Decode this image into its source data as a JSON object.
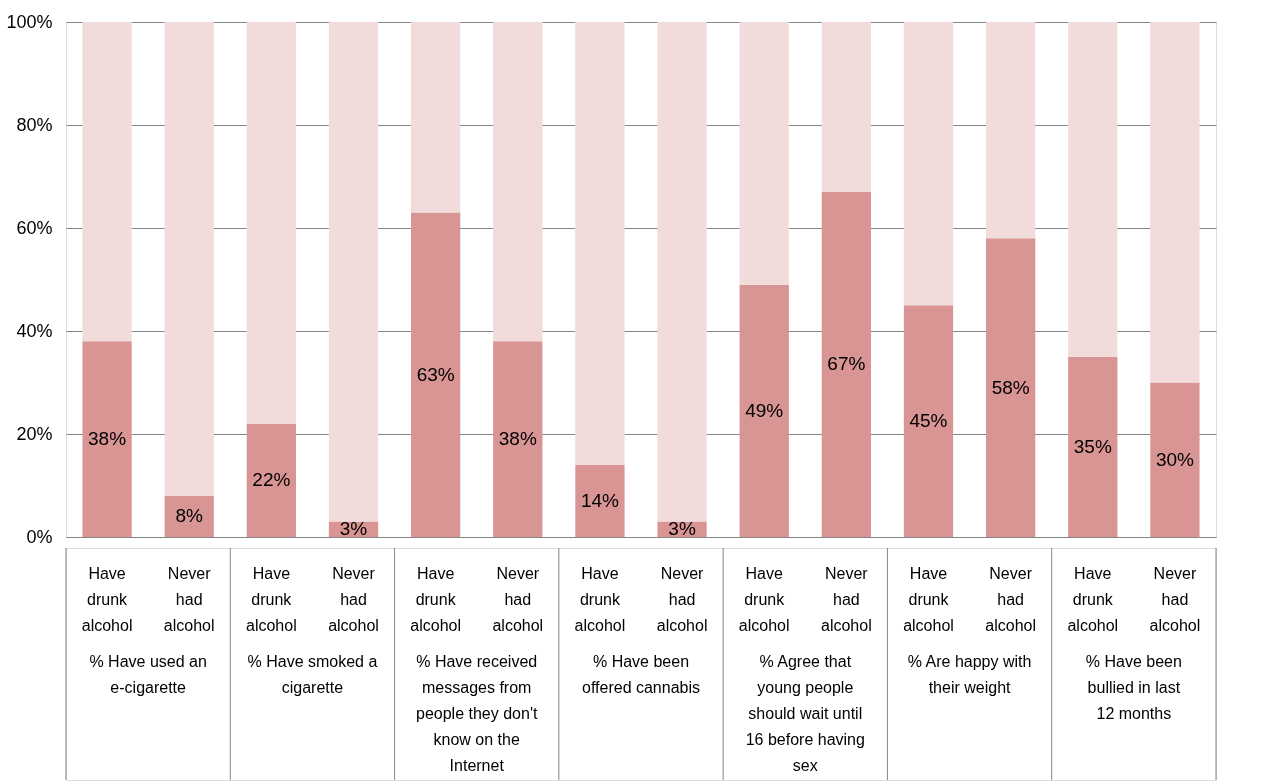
{
  "chart_data": {
    "type": "bar",
    "stacked": true,
    "categories": [
      "Have drunk alcohol",
      "Never had alcohol",
      "Have drunk alcohol",
      "Never had alcohol",
      "Have drunk alcohol",
      "Never had alcohol",
      "Have drunk alcohol",
      "Never had alcohol",
      "Have drunk alcohol",
      "Never had alcohol",
      "Have drunk alcohol",
      "Never had alcohol",
      "Have drunk alcohol",
      "Never had alcohol"
    ],
    "series": [
      {
        "color": "#d99594",
        "values": [
          38,
          8,
          22,
          3,
          63,
          38,
          14,
          3,
          49,
          67,
          45,
          58,
          35,
          30
        ],
        "value_labels": [
          "38%",
          "8%",
          "22%",
          "3%",
          "63%",
          "38%",
          "14%",
          "3%",
          "49%",
          "67%",
          "45%",
          "58%",
          "35%",
          "30%"
        ]
      },
      {
        "color": "#f2dcdb",
        "values": [
          62,
          92,
          78,
          97,
          37,
          62,
          86,
          97,
          51,
          33,
          55,
          42,
          65,
          70
        ]
      }
    ],
    "annotations": [
      "% Have used an e-cigarette",
      "% Have smoked a cigarette",
      "% Have received messages from people they don't know on the Internet",
      "% Have been offered cannabis",
      "% Agree that young people should wait until 16 before having sex",
      "% Are happy with their weight",
      "% Have been bullied in last 12 months"
    ],
    "ylim": [
      0,
      100
    ],
    "yticks": [
      {
        "value": 0,
        "label": "0%"
      },
      {
        "value": 20,
        "label": "20%"
      },
      {
        "value": 40,
        "label": "40%"
      },
      {
        "value": 60,
        "label": "60%"
      },
      {
        "value": 80,
        "label": "80%"
      },
      {
        "value": 100,
        "label": "100%"
      }
    ],
    "grid": "y"
  }
}
